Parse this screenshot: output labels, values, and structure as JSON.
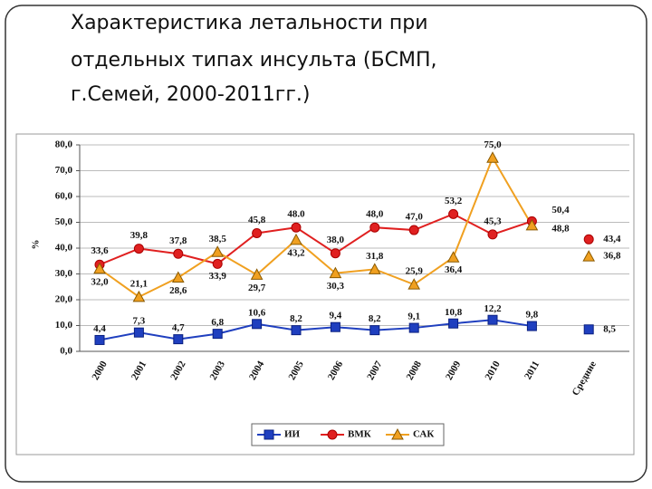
{
  "title_lines": [
    "Характеристика летальности при",
    "отдельных типах инсульта (БСМП,",
    "г.Семей, 2000-2011гг.)"
  ],
  "chart_data": {
    "type": "line",
    "y_label": "%",
    "categories": [
      "2000",
      "2001",
      "2002",
      "2003",
      "2004",
      "2005",
      "2006",
      "2007",
      "2008",
      "2009",
      "2010",
      "2011",
      "Средние"
    ],
    "ylim": [
      0,
      80
    ],
    "yticks": [
      {
        "value": 0,
        "label": "0,0"
      },
      {
        "value": 10,
        "label": "10,0"
      },
      {
        "value": 20,
        "label": "20,0"
      },
      {
        "value": 30,
        "label": "30,0"
      },
      {
        "value": 40,
        "label": "40,0"
      },
      {
        "value": 50,
        "label": "50,0"
      },
      {
        "value": 60,
        "label": "60,0"
      },
      {
        "value": 70,
        "label": "70,0"
      },
      {
        "value": 80,
        "label": "80,0"
      }
    ],
    "grid": true,
    "legend": "bottom",
    "series": [
      {
        "name": "ИИ",
        "color": "#1f3fbf",
        "marker": "square",
        "values": [
          4.4,
          7.3,
          4.7,
          6.8,
          10.6,
          8.2,
          9.4,
          8.2,
          9.1,
          10.8,
          12.2,
          9.8,
          8.5
        ],
        "value_labels": [
          "4,4",
          "7,3",
          "4,7",
          "6,8",
          "10,6",
          "8,2",
          "9,4",
          "8,2",
          "9,1",
          "10,8",
          "12,2",
          "9,8",
          "8,5"
        ]
      },
      {
        "name": "ВМК",
        "color": "#e02020",
        "marker": "circle",
        "values": [
          33.6,
          39.8,
          37.8,
          33.9,
          45.8,
          48.0,
          38.0,
          48.0,
          47.0,
          53.2,
          45.3,
          50.4,
          43.4
        ],
        "value_labels": [
          "33,6",
          "39,8",
          "37,8",
          "33,9",
          "45,8",
          "48.0",
          "38,0",
          "48,0",
          "47,0",
          "53,2",
          "45,3",
          "50,4",
          "43,4"
        ]
      },
      {
        "name": "САК",
        "color": "#f0a020",
        "marker": "triangle",
        "values": [
          32.0,
          21.1,
          28.6,
          38.5,
          29.7,
          43.2,
          30.3,
          31.8,
          25.9,
          36.4,
          75.0,
          48.8,
          36.8
        ],
        "value_labels": [
          "32,0",
          "21,1",
          "28,6",
          "38,5",
          "29,7",
          "43,2",
          "30,3",
          "31,8",
          "25,9",
          "36,4",
          "75,0",
          "48,8",
          "36,8"
        ]
      }
    ]
  }
}
